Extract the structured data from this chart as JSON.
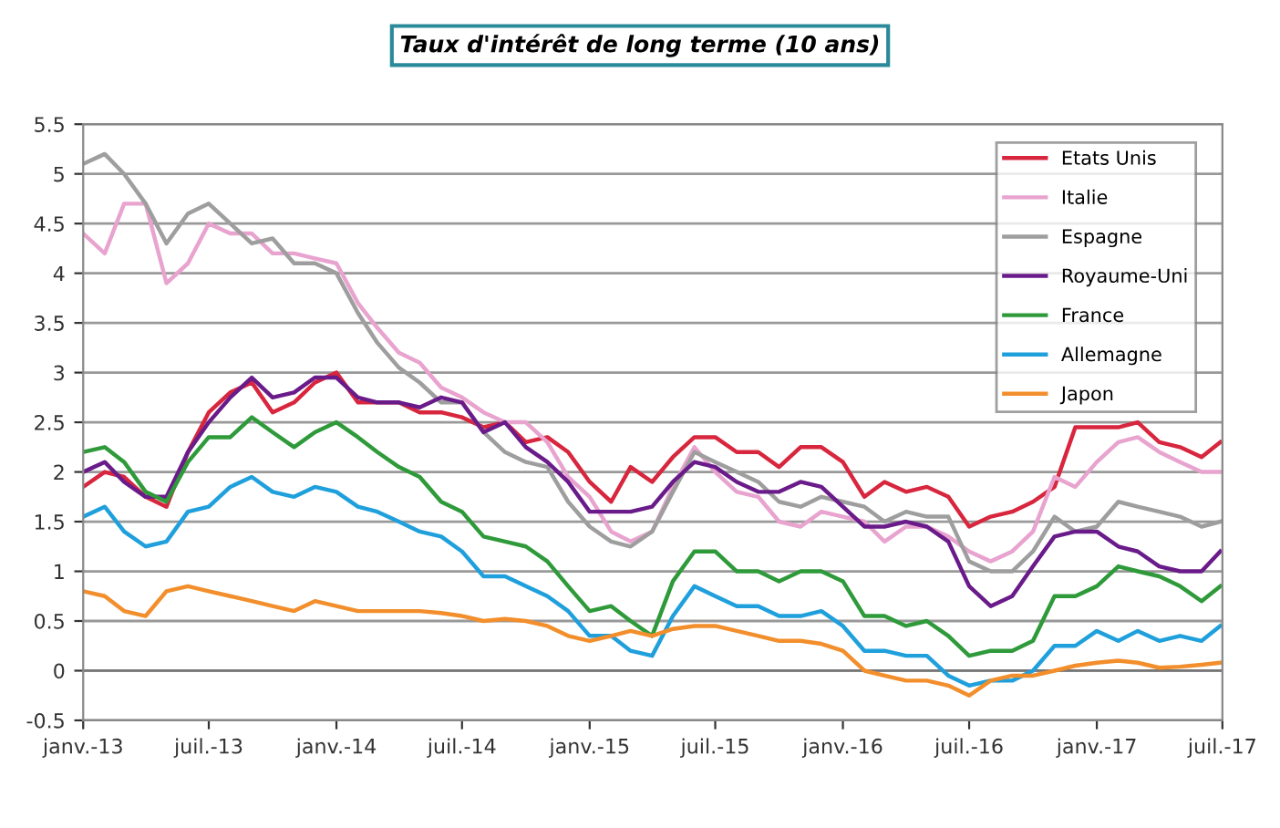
{
  "chart_data": {
    "type": "line",
    "title": "Taux d'intérêt de long terme (10 ans)",
    "x": [
      "2013-01",
      "2013-02",
      "2013-03",
      "2013-04",
      "2013-05",
      "2013-06",
      "2013-07",
      "2013-08",
      "2013-09",
      "2013-10",
      "2013-11",
      "2013-12",
      "2014-01",
      "2014-02",
      "2014-03",
      "2014-04",
      "2014-05",
      "2014-06",
      "2014-07",
      "2014-08",
      "2014-09",
      "2014-10",
      "2014-11",
      "2014-12",
      "2015-01",
      "2015-02",
      "2015-03",
      "2015-04",
      "2015-05",
      "2015-06",
      "2015-07",
      "2015-08",
      "2015-09",
      "2015-10",
      "2015-11",
      "2015-12",
      "2016-01",
      "2016-02",
      "2016-03",
      "2016-04",
      "2016-05",
      "2016-06",
      "2016-07",
      "2016-08",
      "2016-09",
      "2016-10",
      "2016-11",
      "2016-12",
      "2017-01",
      "2017-02",
      "2017-03",
      "2017-04",
      "2017-05",
      "2017-06",
      "2017-06-28"
    ],
    "series": [
      {
        "name": "Etats Unis",
        "color": "#d7263d",
        "values": [
          1.85,
          2.0,
          1.95,
          1.75,
          1.65,
          2.2,
          2.6,
          2.8,
          2.9,
          2.6,
          2.7,
          2.9,
          3.0,
          2.7,
          2.7,
          2.7,
          2.6,
          2.6,
          2.55,
          2.45,
          2.5,
          2.3,
          2.35,
          2.2,
          1.9,
          1.7,
          2.05,
          1.9,
          2.15,
          2.35,
          2.35,
          2.2,
          2.2,
          2.05,
          2.25,
          2.25,
          2.1,
          1.75,
          1.9,
          1.8,
          1.85,
          1.75,
          1.45,
          1.55,
          1.6,
          1.7,
          1.85,
          2.45,
          2.45,
          2.45,
          2.5,
          2.3,
          2.25,
          2.15,
          2.3
        ]
      },
      {
        "name": "Italie",
        "color": "#e8a3cf",
        "values": [
          4.4,
          4.2,
          4.7,
          4.7,
          3.9,
          4.1,
          4.5,
          4.4,
          4.4,
          4.2,
          4.2,
          4.15,
          4.1,
          3.7,
          3.45,
          3.2,
          3.1,
          2.85,
          2.75,
          2.6,
          2.5,
          2.5,
          2.3,
          1.95,
          1.75,
          1.4,
          1.3,
          1.4,
          1.85,
          2.25,
          2.0,
          1.8,
          1.75,
          1.5,
          1.45,
          1.6,
          1.55,
          1.5,
          1.3,
          1.45,
          1.45,
          1.35,
          1.2,
          1.1,
          1.2,
          1.4,
          1.95,
          1.85,
          2.1,
          2.3,
          2.35,
          2.2,
          2.1,
          2.0,
          2.0
        ]
      },
      {
        "name": "Espagne",
        "color": "#9e9e9e",
        "values": [
          5.1,
          5.2,
          5.0,
          4.7,
          4.3,
          4.6,
          4.7,
          4.5,
          4.3,
          4.35,
          4.1,
          4.1,
          4.0,
          3.6,
          3.3,
          3.05,
          2.9,
          2.7,
          2.7,
          2.4,
          2.2,
          2.1,
          2.05,
          1.7,
          1.45,
          1.3,
          1.25,
          1.4,
          1.8,
          2.2,
          2.1,
          2.0,
          1.9,
          1.7,
          1.65,
          1.75,
          1.7,
          1.65,
          1.5,
          1.6,
          1.55,
          1.55,
          1.1,
          1.0,
          1.0,
          1.2,
          1.55,
          1.4,
          1.45,
          1.7,
          1.65,
          1.6,
          1.55,
          1.45,
          1.5
        ]
      },
      {
        "name": "Royaume-Uni",
        "color": "#6a1b8a",
        "values": [
          2.0,
          2.1,
          1.9,
          1.75,
          1.75,
          2.2,
          2.5,
          2.75,
          2.95,
          2.75,
          2.8,
          2.95,
          2.95,
          2.75,
          2.7,
          2.7,
          2.65,
          2.75,
          2.7,
          2.4,
          2.5,
          2.25,
          2.1,
          1.9,
          1.6,
          1.6,
          1.6,
          1.65,
          1.9,
          2.1,
          2.05,
          1.9,
          1.8,
          1.8,
          1.9,
          1.85,
          1.65,
          1.45,
          1.45,
          1.5,
          1.45,
          1.3,
          0.85,
          0.65,
          0.75,
          1.05,
          1.35,
          1.4,
          1.4,
          1.25,
          1.2,
          1.05,
          1.0,
          1.0,
          1.2
        ]
      },
      {
        "name": "France",
        "color": "#2e9a3a",
        "values": [
          2.2,
          2.25,
          2.1,
          1.8,
          1.7,
          2.1,
          2.35,
          2.35,
          2.55,
          2.4,
          2.25,
          2.4,
          2.5,
          2.35,
          2.2,
          2.05,
          1.95,
          1.7,
          1.6,
          1.35,
          1.3,
          1.25,
          1.1,
          0.85,
          0.6,
          0.65,
          0.5,
          0.35,
          0.9,
          1.2,
          1.2,
          1.0,
          1.0,
          0.9,
          1.0,
          1.0,
          0.9,
          0.55,
          0.55,
          0.45,
          0.5,
          0.35,
          0.15,
          0.2,
          0.2,
          0.3,
          0.75,
          0.75,
          0.85,
          1.05,
          1.0,
          0.95,
          0.85,
          0.7,
          0.85
        ]
      },
      {
        "name": "Allemagne",
        "color": "#1fa0dc",
        "values": [
          1.55,
          1.65,
          1.4,
          1.25,
          1.3,
          1.6,
          1.65,
          1.85,
          1.95,
          1.8,
          1.75,
          1.85,
          1.8,
          1.65,
          1.6,
          1.5,
          1.4,
          1.35,
          1.2,
          0.95,
          0.95,
          0.85,
          0.75,
          0.6,
          0.35,
          0.35,
          0.2,
          0.15,
          0.55,
          0.85,
          0.75,
          0.65,
          0.65,
          0.55,
          0.55,
          0.6,
          0.45,
          0.2,
          0.2,
          0.15,
          0.15,
          -0.05,
          -0.15,
          -0.1,
          -0.1,
          0.0,
          0.25,
          0.25,
          0.4,
          0.3,
          0.4,
          0.3,
          0.35,
          0.3,
          0.45
        ]
      },
      {
        "name": "Japon",
        "color": "#f28e2b",
        "values": [
          0.8,
          0.75,
          0.6,
          0.55,
          0.8,
          0.85,
          0.8,
          0.75,
          0.7,
          0.65,
          0.6,
          0.7,
          0.65,
          0.6,
          0.6,
          0.6,
          0.6,
          0.58,
          0.55,
          0.5,
          0.52,
          0.5,
          0.45,
          0.35,
          0.3,
          0.35,
          0.4,
          0.35,
          0.42,
          0.45,
          0.45,
          0.4,
          0.35,
          0.3,
          0.3,
          0.27,
          0.2,
          0.0,
          -0.05,
          -0.1,
          -0.1,
          -0.15,
          -0.25,
          -0.1,
          -0.05,
          -0.05,
          0.0,
          0.05,
          0.08,
          0.1,
          0.08,
          0.03,
          0.04,
          0.06,
          0.08
        ]
      }
    ],
    "xlim": [
      "2013-01-01",
      "2017-07-01"
    ],
    "xticks": [
      {
        "value": "2013-01-01",
        "label": "janv.-13"
      },
      {
        "value": "2013-07-01",
        "label": "juil.-13"
      },
      {
        "value": "2014-01-01",
        "label": "janv.-14"
      },
      {
        "value": "2014-07-01",
        "label": "juil.-14"
      },
      {
        "value": "2015-01-01",
        "label": "janv.-15"
      },
      {
        "value": "2015-07-01",
        "label": "juil.-15"
      },
      {
        "value": "2016-01-01",
        "label": "janv.-16"
      },
      {
        "value": "2016-07-01",
        "label": "juil.-16"
      },
      {
        "value": "2017-01-01",
        "label": "janv.-17"
      },
      {
        "value": "2017-07-01",
        "label": "juil.-17"
      }
    ],
    "ylim": [
      -0.5,
      5.5
    ],
    "yticks": [
      -0.5,
      0,
      0.5,
      1,
      1.5,
      2,
      2.5,
      3,
      3.5,
      4,
      4.5,
      5,
      5.5
    ],
    "grid": "y",
    "legend": "top right",
    "marker": "none",
    "line_style": "solid"
  }
}
